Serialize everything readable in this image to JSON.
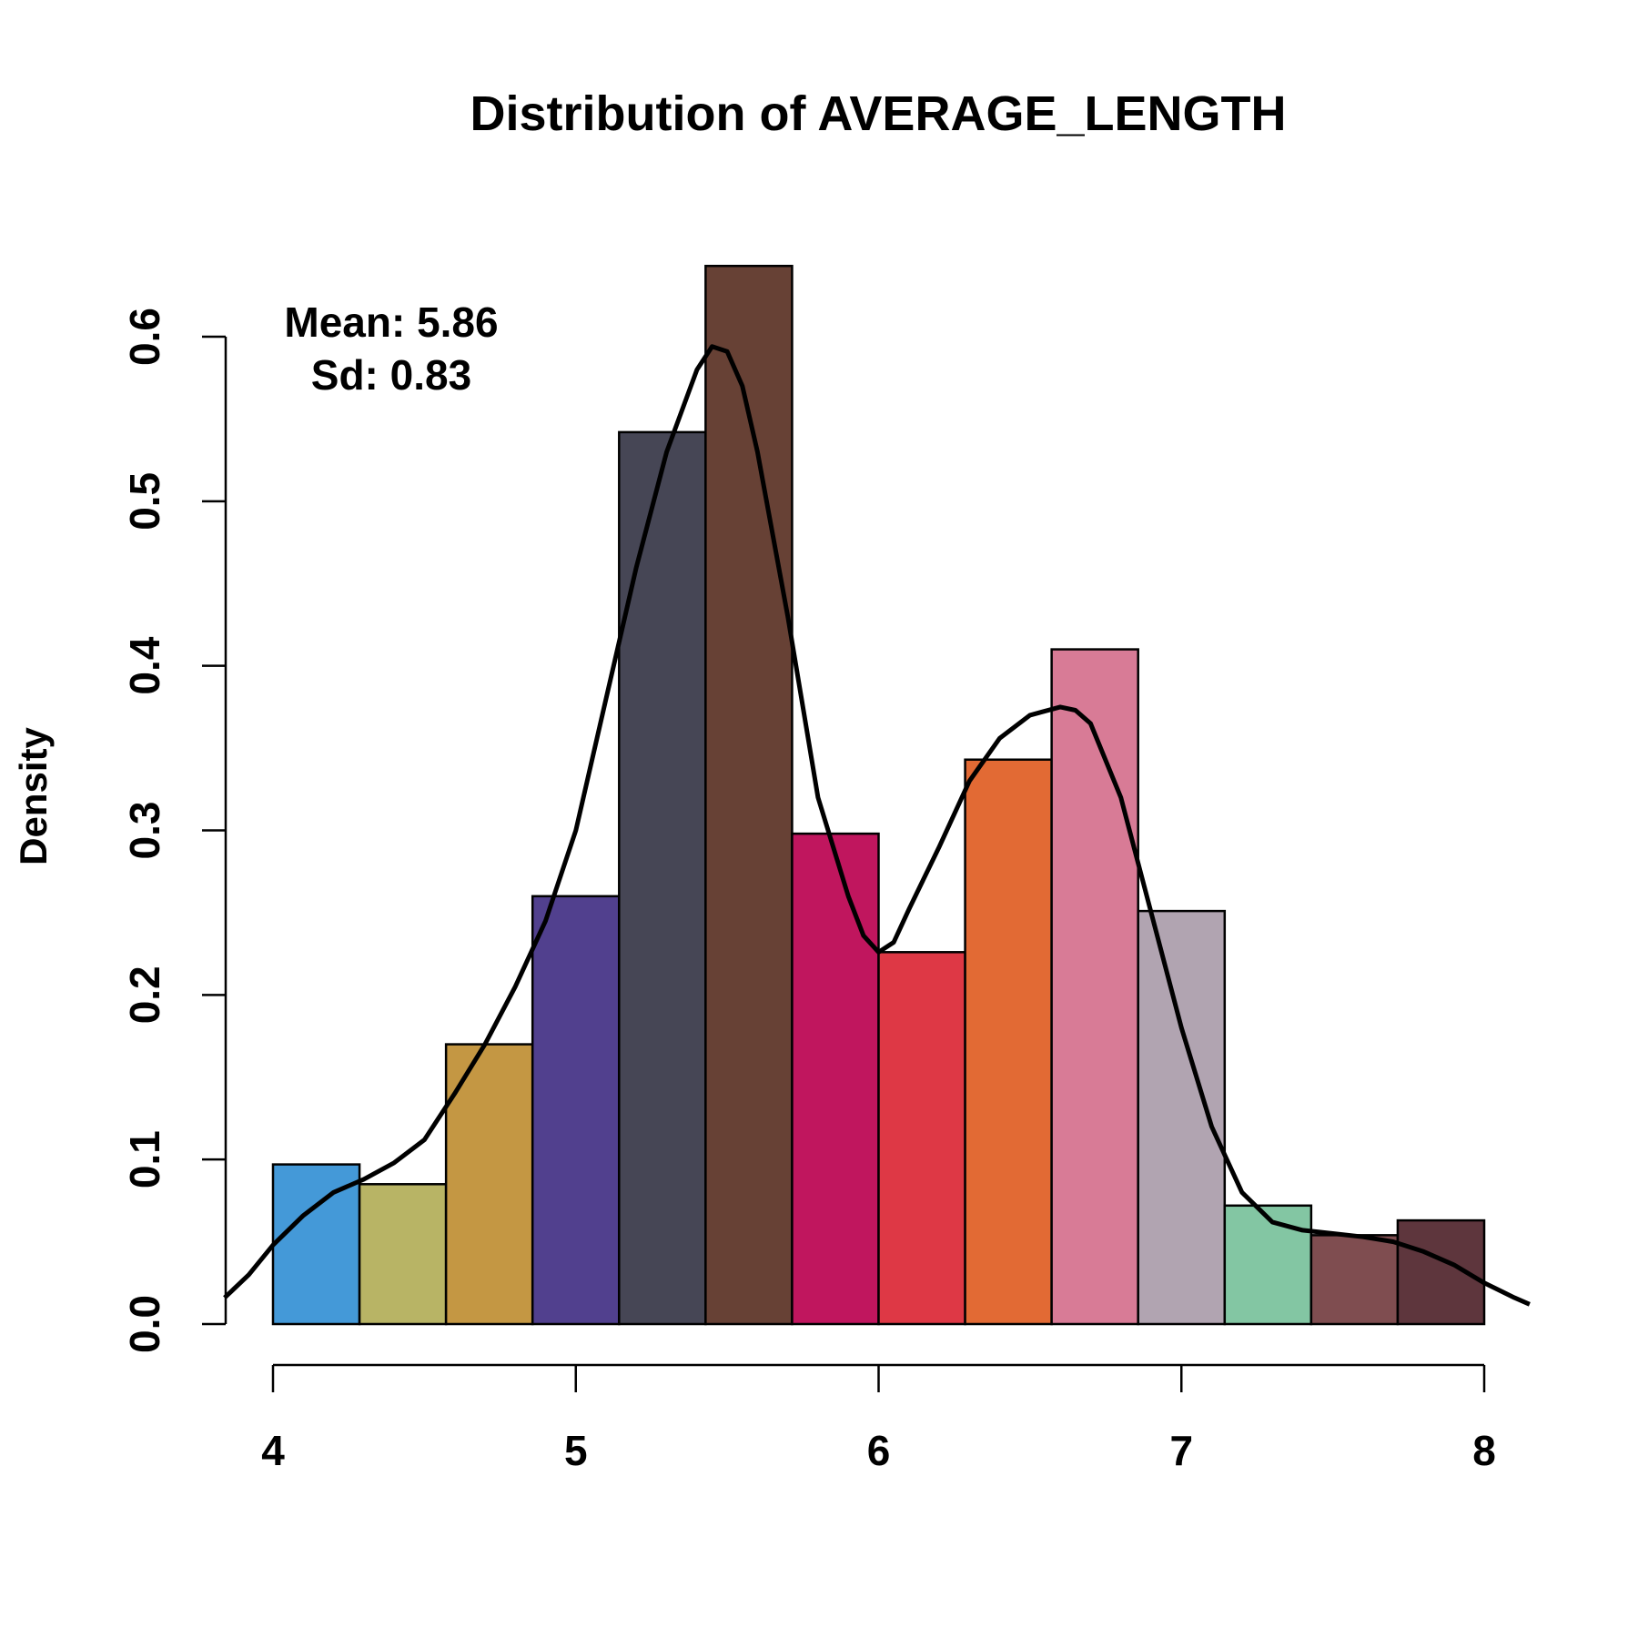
{
  "chart_data": {
    "type": "bar",
    "title": "Distribution of AVERAGE_LENGTH",
    "xlabel": "",
    "ylabel": "Density",
    "xlim": [
      4,
      8
    ],
    "ylim": [
      0,
      0.6
    ],
    "grid": false,
    "x_ticks": [
      "4",
      "5",
      "6",
      "7",
      "8"
    ],
    "y_ticks": [
      "0.0",
      "0.1",
      "0.2",
      "0.3",
      "0.4",
      "0.5",
      "0.6"
    ],
    "bins": [
      {
        "x0": 4.0,
        "x1": 4.2857,
        "density": 0.097,
        "color": "#4499D8"
      },
      {
        "x0": 4.2857,
        "x1": 4.5714,
        "density": 0.085,
        "color": "#B8B465"
      },
      {
        "x0": 4.5714,
        "x1": 4.8571,
        "density": 0.17,
        "color": "#C49743"
      },
      {
        "x0": 4.8571,
        "x1": 5.1429,
        "density": 0.26,
        "color": "#51408E"
      },
      {
        "x0": 5.1429,
        "x1": 5.4286,
        "density": 0.542,
        "color": "#464655"
      },
      {
        "x0": 5.4286,
        "x1": 5.7143,
        "density": 0.643,
        "color": "#674135"
      },
      {
        "x0": 5.7143,
        "x1": 6.0,
        "density": 0.298,
        "color": "#C0165E"
      },
      {
        "x0": 6.0,
        "x1": 6.2857,
        "density": 0.226,
        "color": "#DE3845"
      },
      {
        "x0": 6.2857,
        "x1": 6.5714,
        "density": 0.343,
        "color": "#E26A34"
      },
      {
        "x0": 6.5714,
        "x1": 6.8571,
        "density": 0.41,
        "color": "#D87B96"
      },
      {
        "x0": 6.8571,
        "x1": 7.1429,
        "density": 0.251,
        "color": "#B1A4B1"
      },
      {
        "x0": 7.1429,
        "x1": 7.4286,
        "density": 0.072,
        "color": "#83C6A3"
      },
      {
        "x0": 7.4286,
        "x1": 7.7143,
        "density": 0.054,
        "color": "#7F4D50"
      },
      {
        "x0": 7.7143,
        "x1": 8.0,
        "density": 0.063,
        "color": "#5E363D"
      }
    ],
    "density_curve": {
      "x": [
        3.84,
        3.92,
        4.0,
        4.1,
        4.2,
        4.3,
        4.4,
        4.5,
        4.6,
        4.7,
        4.8,
        4.9,
        5.0,
        5.1,
        5.2,
        5.3,
        5.4,
        5.45,
        5.5,
        5.55,
        5.6,
        5.7,
        5.8,
        5.9,
        5.95,
        6.0,
        6.05,
        6.1,
        6.2,
        6.3,
        6.4,
        6.5,
        6.6,
        6.65,
        6.7,
        6.8,
        6.9,
        7.0,
        7.1,
        7.2,
        7.3,
        7.4,
        7.5,
        7.6,
        7.7,
        7.8,
        7.9,
        8.0,
        8.1,
        8.15
      ],
      "y": [
        0.016,
        0.03,
        0.048,
        0.066,
        0.08,
        0.088,
        0.098,
        0.112,
        0.14,
        0.17,
        0.205,
        0.245,
        0.3,
        0.38,
        0.46,
        0.53,
        0.58,
        0.594,
        0.591,
        0.57,
        0.53,
        0.43,
        0.32,
        0.26,
        0.236,
        0.226,
        0.232,
        0.252,
        0.29,
        0.33,
        0.356,
        0.37,
        0.375,
        0.373,
        0.365,
        0.32,
        0.25,
        0.18,
        0.12,
        0.08,
        0.062,
        0.057,
        0.055,
        0.053,
        0.05,
        0.044,
        0.036,
        0.025,
        0.016,
        0.012
      ]
    },
    "annotations": [
      "Mean: 5.86",
      "Sd: 0.83"
    ]
  }
}
